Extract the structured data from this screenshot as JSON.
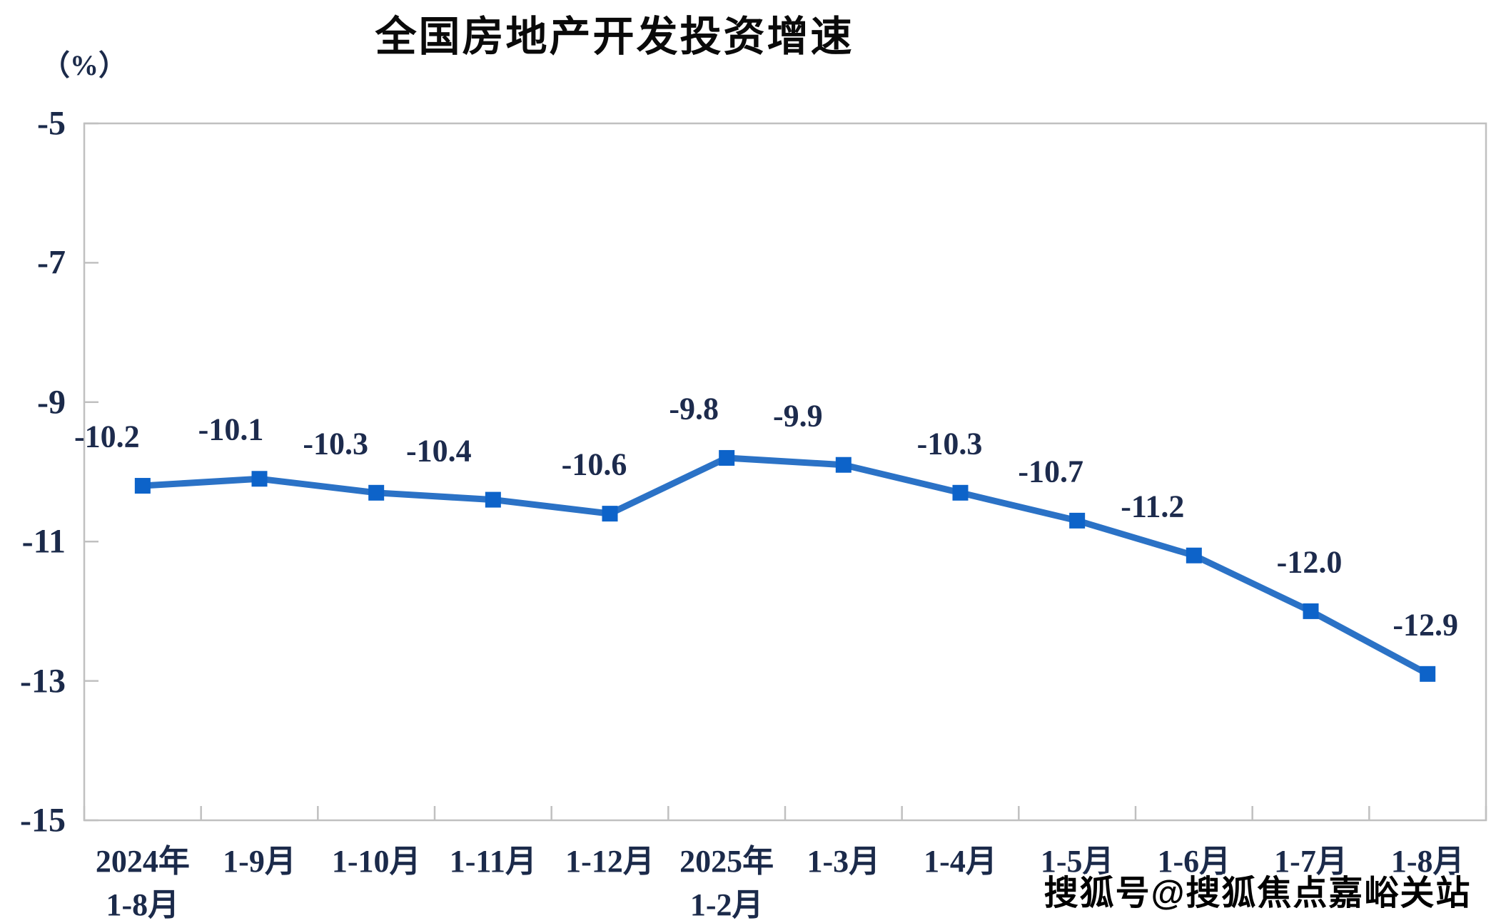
{
  "title": "全国房地产开发投资增速",
  "y_axis_unit": "（%）",
  "watermark": "搜狐号@搜狐焦点嘉峪关站",
  "chart_data": {
    "type": "line",
    "title": "全国房地产开发投资增速",
    "unit_label": "（%）",
    "categories": [
      [
        "2024年",
        "1-8月"
      ],
      [
        "1-9月"
      ],
      [
        "1-10月"
      ],
      [
        "1-11月"
      ],
      [
        "1-12月"
      ],
      [
        "2025年",
        "1-2月"
      ],
      [
        "1-3月"
      ],
      [
        "1-4月"
      ],
      [
        "1-5月"
      ],
      [
        "1-6月"
      ],
      [
        "1-7月"
      ],
      [
        "1-8月"
      ]
    ],
    "values": [
      -10.2,
      -10.1,
      -10.3,
      -10.4,
      -10.6,
      -9.8,
      -9.9,
      -10.3,
      -10.7,
      -11.2,
      -12.0,
      -12.9
    ],
    "data_labels": [
      "-10.2",
      "-10.1",
      "-10.3",
      "-10.4",
      "-10.6",
      "-9.8",
      "-9.9",
      "-10.3",
      "-10.7",
      "-11.2",
      "-12.0",
      "-12.9"
    ],
    "ylim": [
      -15,
      -5
    ],
    "y_ticks": [
      -5,
      -7,
      -9,
      -11,
      -13,
      -15
    ],
    "y_tick_labels": [
      "-5",
      "-7",
      "-9",
      "-11",
      "-13",
      "-15"
    ],
    "grid": false,
    "legend": "none",
    "xlabel": "",
    "ylabel": "（%）",
    "line_color": "#2B72C6",
    "marker_color": "#0D63C9",
    "label_color": "#1D2B4D",
    "axis_color": "#C0C0C0"
  }
}
